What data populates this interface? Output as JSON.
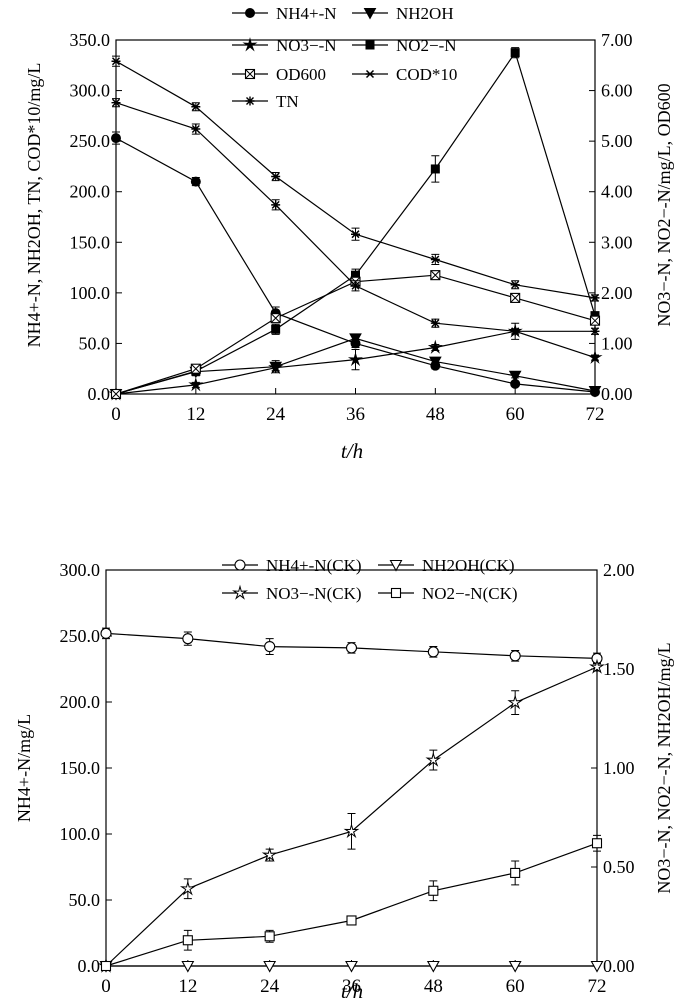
{
  "chart_data": [
    {
      "type": "line",
      "xlabel": "t/h",
      "x": [
        0,
        12,
        24,
        36,
        48,
        60,
        72
      ],
      "xlim": [
        0,
        72
      ],
      "xticks": [
        "0",
        "12",
        "24",
        "36",
        "48",
        "60",
        "72"
      ],
      "ylabel_left": "NH4+-N, NH2OH, TN, COD*10/mg/L",
      "ylim_left": [
        0,
        350
      ],
      "yticks_left": [
        "0.0",
        "50.0",
        "100.0",
        "150.0",
        "200.0",
        "250.0",
        "300.0",
        "350.0"
      ],
      "ylabel_right": "NO3−-N, NO2−-N/mg/L, OD600",
      "ylim_right": [
        0,
        7
      ],
      "yticks_right": [
        "0.00",
        "1.00",
        "2.00",
        "3.00",
        "4.00",
        "5.00",
        "6.00",
        "7.00"
      ],
      "grid": false,
      "legend_position": "top-center",
      "series": [
        {
          "name": "NH4+-N",
          "axis": "left",
          "marker": "circle-filled",
          "values": [
            253,
            210,
            80,
            50,
            28,
            10,
            2
          ],
          "err": [
            6,
            4,
            6,
            4,
            3,
            2,
            1
          ]
        },
        {
          "name": "NH2OH",
          "axis": "left",
          "marker": "triangle-down-filled",
          "values": [
            0,
            22,
            27,
            55,
            32,
            18,
            3
          ],
          "err": [
            1,
            4,
            6,
            4,
            3,
            2,
            1
          ]
        },
        {
          "name": "NO3−-N",
          "axis": "right",
          "marker": "star-filled",
          "values": [
            0,
            0.18,
            0.52,
            0.68,
            0.92,
            1.24,
            0.72
          ],
          "err": [
            0.02,
            0.05,
            0.06,
            0.2,
            0.06,
            0.05,
            0.05
          ]
        },
        {
          "name": "NO2−-N",
          "axis": "right",
          "marker": "square-filled",
          "values": [
            0,
            0.45,
            1.28,
            2.35,
            4.45,
            6.75,
            1.55
          ],
          "err": [
            0.02,
            0.06,
            0.1,
            0.12,
            0.26,
            0.1,
            0.06
          ]
        },
        {
          "name": "OD600",
          "axis": "right",
          "marker": "square-hatched",
          "values": [
            0,
            0.5,
            1.5,
            2.22,
            2.35,
            1.9,
            1.45
          ],
          "err": [
            0.02,
            0.05,
            0.08,
            0.05,
            0.04,
            0.06,
            0.05
          ]
        },
        {
          "name": "COD*10",
          "axis": "left",
          "marker": "asterisk",
          "values": [
            329,
            284,
            215,
            158,
            133,
            108,
            95
          ],
          "err": [
            5,
            4,
            4,
            6,
            5,
            4,
            3
          ]
        },
        {
          "name": "TN",
          "axis": "left",
          "marker": "star-asterisk",
          "values": [
            288,
            262,
            187,
            107,
            70,
            62,
            62
          ],
          "err": [
            4,
            5,
            5,
            5,
            4,
            8,
            3
          ]
        }
      ]
    },
    {
      "type": "line",
      "xlabel": "t/h",
      "x": [
        0,
        12,
        24,
        36,
        48,
        60,
        72
      ],
      "xlim": [
        0,
        72
      ],
      "xticks": [
        "0",
        "12",
        "24",
        "36",
        "48",
        "60",
        "72"
      ],
      "ylabel_left": "NH4+-N/mg/L",
      "ylim_left": [
        0,
        300
      ],
      "yticks_left": [
        "0.0",
        "50.0",
        "100.0",
        "150.0",
        "200.0",
        "250.0",
        "300.0"
      ],
      "ylabel_right": "NO3−-N, NO2−-N, NH2OH/mg/L",
      "ylim_right": [
        0,
        2
      ],
      "yticks_right": [
        "0.00",
        "0.50",
        "1.00",
        "1.50",
        "2.00"
      ],
      "grid": false,
      "legend_position": "top-center",
      "series": [
        {
          "name": "NH4+-N(CK)",
          "axis": "left",
          "marker": "circle-open",
          "values": [
            252,
            248,
            242,
            241,
            238,
            235,
            233
          ],
          "err": [
            4,
            5,
            6,
            4,
            4,
            4,
            4
          ]
        },
        {
          "name": "NH2OH(CK)",
          "axis": "right",
          "marker": "triangle-down-open",
          "values": [
            0,
            0,
            0,
            0,
            0,
            0,
            0
          ],
          "err": [
            0,
            0,
            0,
            0,
            0,
            0,
            0
          ]
        },
        {
          "name": "NO3−-N(CK)",
          "axis": "right",
          "marker": "star-open",
          "values": [
            0,
            0.39,
            0.56,
            0.68,
            1.04,
            1.33,
            1.51
          ],
          "err": [
            0,
            0.05,
            0.03,
            0.09,
            0.05,
            0.06,
            0.02
          ]
        },
        {
          "name": "NO2−-N(CK)",
          "axis": "right",
          "marker": "square-open",
          "values": [
            0,
            0.13,
            0.15,
            0.23,
            0.38,
            0.47,
            0.62
          ],
          "err": [
            0,
            0.05,
            0.03,
            0.01,
            0.05,
            0.06,
            0.04
          ]
        }
      ]
    }
  ]
}
